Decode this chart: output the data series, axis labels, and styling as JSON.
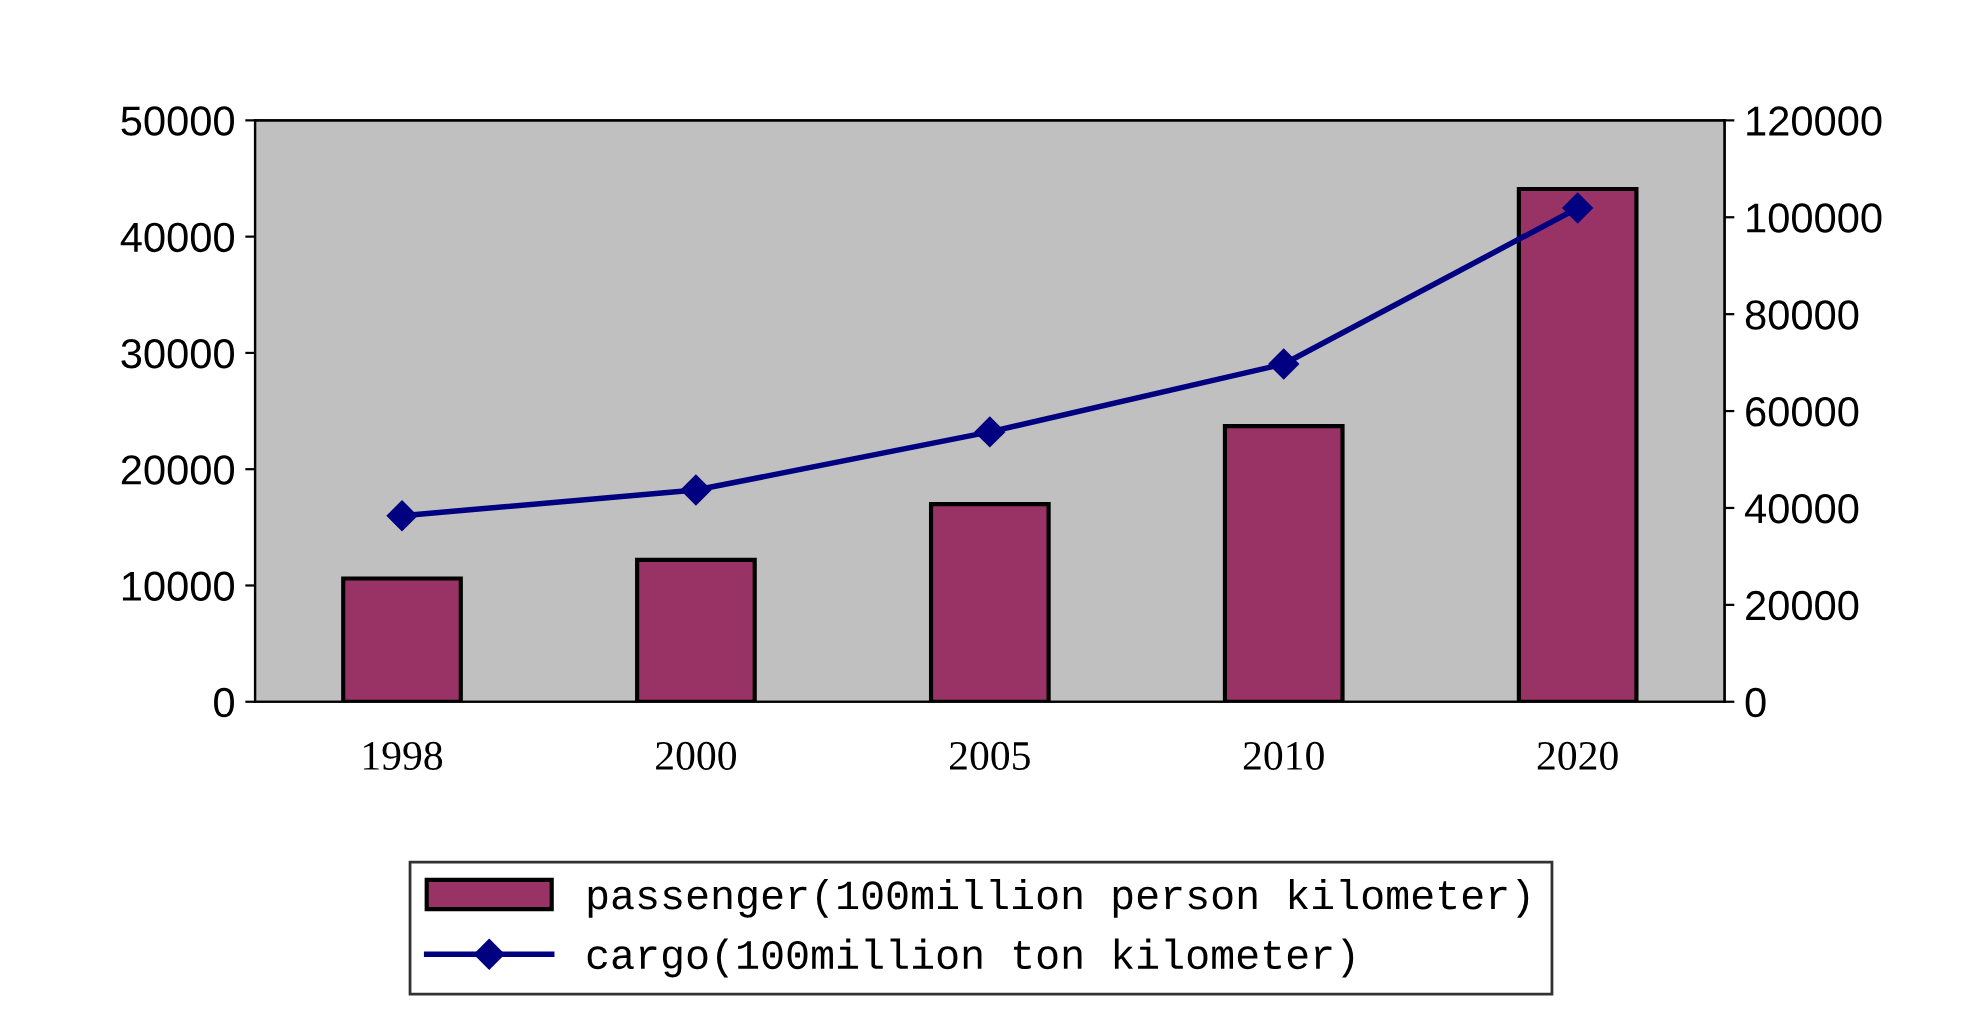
{
  "chart_data": {
    "type": "bar",
    "categories": [
      "1998",
      "2000",
      "2005",
      "2010",
      "2020"
    ],
    "series": [
      {
        "name": "passenger(100million person kilometer)",
        "color": "#993366",
        "values": [
          10600,
          12200,
          17000,
          23700,
          44100
        ]
      },
      {
        "name": "cargo(100million ton kilometer)",
        "color": "#000080",
        "type": "line",
        "axis": "y2",
        "values": [
          38400,
          43700,
          55700,
          69700,
          101900
        ]
      }
    ],
    "ylim": [
      0,
      50000
    ],
    "yticks": [
      0,
      10000,
      20000,
      30000,
      40000,
      50000
    ],
    "y2lim": [
      0,
      120000
    ],
    "y2ticks": [
      0,
      20000,
      40000,
      60000,
      80000,
      100000,
      120000
    ],
    "grid": false,
    "legend": "bottom",
    "marker": "diamond",
    "line_style": "solid"
  }
}
